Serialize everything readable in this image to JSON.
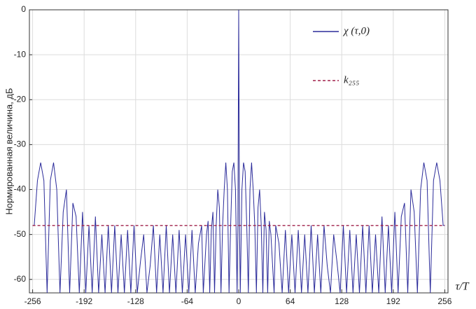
{
  "chart_data": {
    "type": "line",
    "ylabel": "Нормированная величина, дБ",
    "xlabel": "τ/T",
    "x": [
      -256,
      -254,
      -250,
      -246,
      -242,
      -238,
      -234,
      -230,
      -226,
      -222,
      -218,
      -214,
      -210,
      -206,
      -202,
      -198,
      -194,
      -190,
      -186,
      -182,
      -178,
      -174,
      -170,
      -166,
      -162,
      -158,
      -154,
      -150,
      -146,
      -142,
      -138,
      -134,
      -130,
      -126,
      -122,
      -118,
      -114,
      -110,
      -106,
      -102,
      -98,
      -94,
      -90,
      -86,
      -82,
      -78,
      -74,
      -70,
      -66,
      -62,
      -58,
      -54,
      -50,
      -46,
      -44,
      -40,
      -38,
      -36,
      -34,
      -32,
      -30,
      -28,
      -26,
      -24,
      -22,
      -20,
      -18,
      -16,
      -14,
      -12,
      -10,
      -8,
      -6,
      -4,
      -2,
      -1,
      0,
      1,
      2,
      4,
      6,
      8,
      10,
      12,
      14,
      16,
      18,
      20,
      22,
      24,
      26,
      28,
      30,
      32,
      34,
      36,
      38,
      40,
      44,
      46,
      50,
      54,
      58,
      62,
      66,
      70,
      74,
      78,
      82,
      86,
      90,
      94,
      98,
      102,
      106,
      110,
      114,
      118,
      122,
      126,
      130,
      134,
      138,
      142,
      146,
      150,
      154,
      158,
      162,
      166,
      170,
      174,
      178,
      182,
      186,
      190,
      194,
      198,
      202,
      206,
      210,
      214,
      218,
      222,
      226,
      230,
      234,
      238,
      242,
      246,
      250,
      254,
      256
    ],
    "series": [
      {
        "name": "χ (τ,0)",
        "color": "#2b2b9a",
        "dash": false,
        "values": [
          -48,
          -48,
          -38,
          -34,
          -38,
          -63,
          -38,
          -34,
          -40,
          -63,
          -45,
          -40,
          -63,
          -43,
          -46,
          -63,
          -45,
          -63,
          -48,
          -63,
          -46,
          -63,
          -50,
          -63,
          -48,
          -63,
          -48,
          -63,
          -50,
          -63,
          -49,
          -63,
          -48,
          -63,
          -56,
          -50,
          -63,
          -57,
          -48,
          -63,
          -50,
          -63,
          -48,
          -63,
          -50,
          -63,
          -49,
          -63,
          -50,
          -63,
          -49,
          -63,
          -52,
          -48,
          -63,
          -50,
          -47,
          -63,
          -49,
          -45,
          -63,
          -48,
          -40,
          -44,
          -63,
          -48,
          -40,
          -34,
          -40,
          -63,
          -48,
          -36,
          -34,
          -40,
          -63,
          -48,
          0,
          -48,
          -63,
          -40,
          -34,
          -36,
          -48,
          -63,
          -40,
          -34,
          -40,
          -48,
          -63,
          -44,
          -40,
          -48,
          -63,
          -45,
          -49,
          -63,
          -47,
          -50,
          -63,
          -48,
          -52,
          -63,
          -49,
          -63,
          -50,
          -63,
          -49,
          -63,
          -50,
          -63,
          -48,
          -63,
          -50,
          -63,
          -48,
          -57,
          -63,
          -50,
          -56,
          -63,
          -48,
          -63,
          -49,
          -63,
          -50,
          -63,
          -48,
          -63,
          -48,
          -63,
          -50,
          -63,
          -46,
          -63,
          -48,
          -63,
          -45,
          -63,
          -46,
          -43,
          -63,
          -40,
          -45,
          -63,
          -40,
          -34,
          -38,
          -63,
          -38,
          -34,
          -38,
          -48,
          -48
        ]
      },
      {
        "name": "k₂₅₅",
        "color": "#a0204a",
        "dash": true,
        "x": [
          -256,
          256
        ],
        "values": [
          -48,
          -48
        ]
      }
    ],
    "xlim": [
      -260,
      260
    ],
    "ylim": [
      -63,
      0
    ],
    "xticks": [
      -256,
      -192,
      -128,
      -64,
      0,
      64,
      128,
      192,
      256
    ],
    "yticks": [
      -60,
      -50,
      -40,
      -30,
      -20,
      -10,
      0
    ],
    "grid": true,
    "legend": "upper right"
  }
}
